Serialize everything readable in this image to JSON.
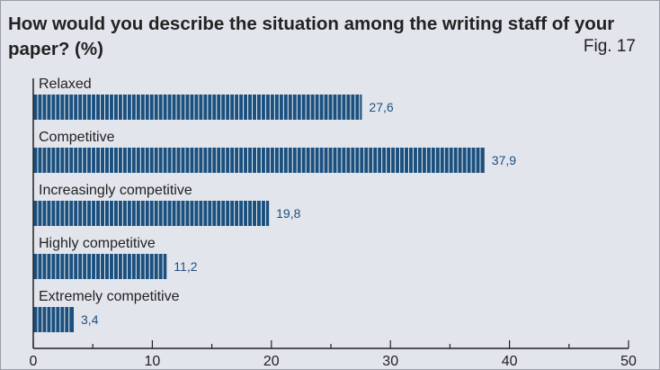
{
  "chart_data": {
    "type": "bar",
    "orientation": "horizontal",
    "title": "How would you describe the situation among the writing staff of your paper? (%)",
    "figure_label": "Fig. 17",
    "categories": [
      "Relaxed",
      "Competitive",
      "Increasingly competitive",
      "Highly competitive",
      "Extremely competitive"
    ],
    "values": [
      27.6,
      37.9,
      19.8,
      11.2,
      3.4
    ],
    "value_labels": [
      "27,6",
      "37,9",
      "19,8",
      "11,2",
      "3,4"
    ],
    "xlim": [
      0,
      50
    ],
    "xticks": [
      "0",
      "10",
      "20",
      "30",
      "40",
      "50"
    ],
    "grid": false,
    "bar_color": "#1a4f7e",
    "background_color": "#e3e5ec",
    "value_label_color": "#1f4f7e"
  }
}
